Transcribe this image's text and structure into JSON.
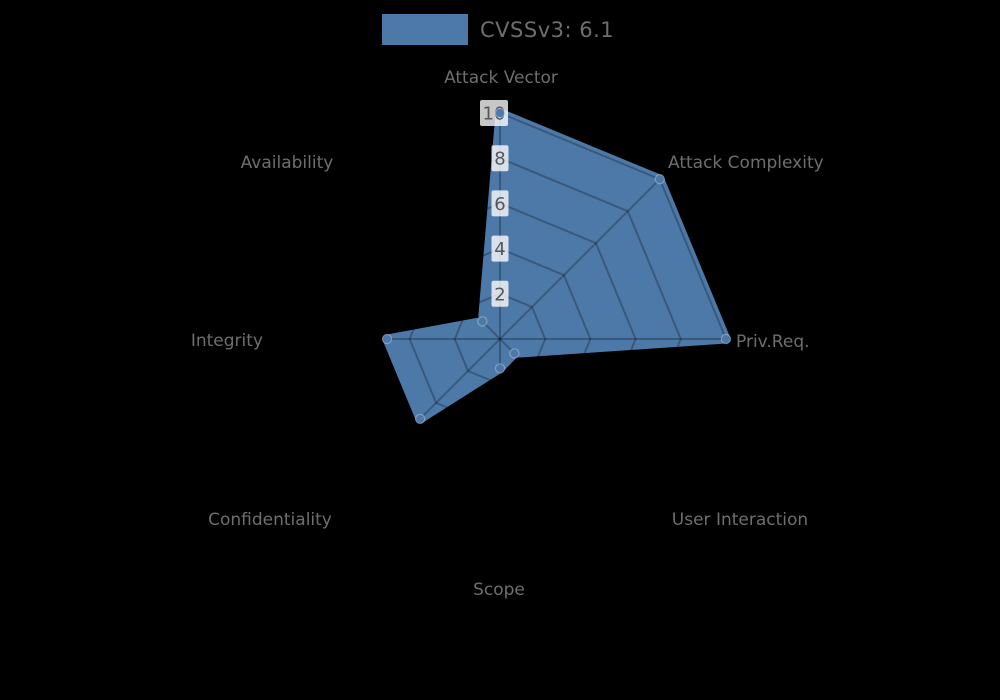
{
  "legend": {
    "label": "CVSSv3: 6.1",
    "swatch_icon": "series-color-swatch"
  },
  "chart_data": {
    "type": "radar",
    "title": "CVSSv3: 6.1",
    "axes": [
      "Attack Vector",
      "Attack Complexity",
      "Priv.Req.",
      "User Interaction",
      "Scope",
      "Confidentiality",
      "Integrity",
      "Availability"
    ],
    "series": [
      {
        "name": "CVSSv3: 6.1",
        "color": "#4d79a8",
        "values": [
          10,
          10,
          10,
          0.9,
          1.3,
          5,
          5,
          1.1
        ]
      }
    ],
    "scale": {
      "min": 0,
      "max": 10,
      "ticks": [
        2,
        4,
        6,
        8,
        10
      ]
    },
    "layout_hints": {
      "start_axis": "top",
      "direction": "clockwise",
      "grid": "rings-and-spokes",
      "legend_position": "top-center"
    },
    "colors": {
      "series": "#4d79a8",
      "label_text": "#6e6e6e",
      "tick_text": "#565656",
      "tick_box_bg": "rgba(255,255,255,0.78)",
      "grid_overlay": "rgba(0,0,0,0.26)",
      "dot_halo": "rgba(255,255,255,0.30)",
      "background": "#000000"
    }
  }
}
